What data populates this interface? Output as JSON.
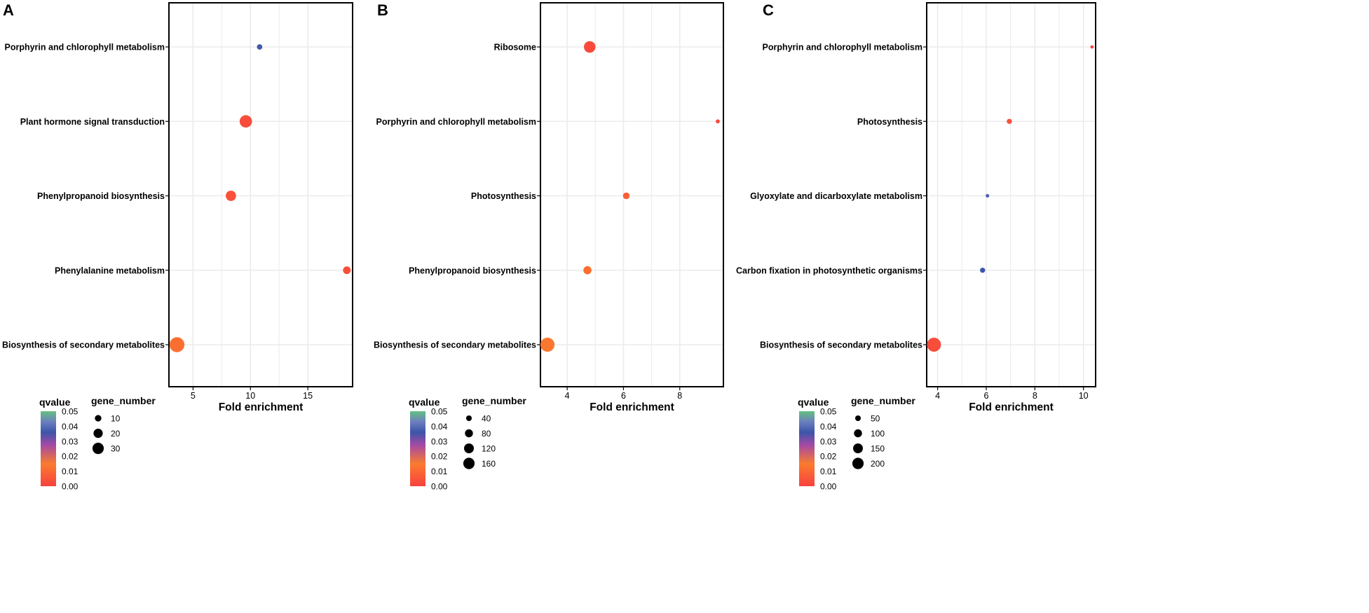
{
  "colors": {
    "grid": "#ebebeb",
    "axis": "#000000",
    "point_fill_scale": [
      "#f8413e",
      "#fa7b2e",
      "#a44aa5",
      "#3b55a8",
      "#6c7fbf",
      "#63c07f"
    ]
  },
  "chart_data": [
    {
      "type": "scatter",
      "panel_label": "A",
      "xlabel": "Fold enrichment",
      "ylabel": "",
      "xlim": [
        2.9,
        18.9
      ],
      "xticks": [
        "5",
        "10",
        "15"
      ],
      "xtick_values": [
        5,
        10,
        15
      ],
      "categories": [
        "Porphyrin and chlorophyll metabolism",
        "Plant hormone signal transduction",
        "Phenylpropanoid biosynthesis",
        "Phenylalanine metabolism",
        "Biosynthesis of secondary metabolites"
      ],
      "points": [
        {
          "pathway": "Porphyrin and chlorophyll metabolism",
          "fold_enrichment": 10.8,
          "qvalue": 0.037,
          "gene_number": 5
        },
        {
          "pathway": "Plant hormone signal transduction",
          "fold_enrichment": 9.6,
          "qvalue": 0.003,
          "gene_number": 26
        },
        {
          "pathway": "Phenylpropanoid biosynthesis",
          "fold_enrichment": 8.3,
          "qvalue": 0.004,
          "gene_number": 18
        },
        {
          "pathway": "Phenylalanine metabolism",
          "fold_enrichment": 18.4,
          "qvalue": 0.004,
          "gene_number": 10
        },
        {
          "pathway": "Biosynthesis of secondary metabolites",
          "fold_enrichment": 3.6,
          "qvalue": 0.012,
          "gene_number": 38
        }
      ],
      "color_legend": {
        "title": "qvalue",
        "min": 0.0,
        "max": 0.05,
        "labels": [
          "0.05",
          "0.04",
          "0.03",
          "0.02",
          "0.01",
          "0.00"
        ]
      },
      "size_legend": {
        "title": "gene_number",
        "labels": [
          "10",
          "20",
          "30"
        ],
        "values": [
          10,
          20,
          30
        ]
      }
    },
    {
      "type": "scatter",
      "panel_label": "B",
      "xlabel": "Fold enrichment",
      "ylabel": "",
      "xlim": [
        3.05,
        9.55
      ],
      "xticks": [
        "4",
        "6",
        "8"
      ],
      "xtick_values": [
        4,
        6,
        8
      ],
      "categories": [
        "Ribosome",
        "Porphyrin and chlorophyll metabolism",
        "Photosynthesis",
        "Phenylpropanoid biosynthesis",
        "Biosynthesis of secondary metabolites"
      ],
      "points": [
        {
          "pathway": "Ribosome",
          "fold_enrichment": 4.8,
          "qvalue": 0.002,
          "gene_number": 120
        },
        {
          "pathway": "Porphyrin and chlorophyll metabolism",
          "fold_enrichment": 9.35,
          "qvalue": 0.002,
          "gene_number": 15
        },
        {
          "pathway": "Photosynthesis",
          "fold_enrichment": 6.1,
          "qvalue": 0.008,
          "gene_number": 40
        },
        {
          "pathway": "Phenylpropanoid biosynthesis",
          "fold_enrichment": 4.72,
          "qvalue": 0.012,
          "gene_number": 60
        },
        {
          "pathway": "Biosynthesis of secondary metabolites",
          "fold_enrichment": 3.3,
          "qvalue": 0.014,
          "gene_number": 180
        }
      ],
      "color_legend": {
        "title": "qvalue",
        "min": 0.0,
        "max": 0.05,
        "labels": [
          "0.05",
          "0.04",
          "0.03",
          "0.02",
          "0.01",
          "0.00"
        ]
      },
      "size_legend": {
        "title": "gene_number",
        "labels": [
          "40",
          "80",
          "120",
          "160"
        ],
        "values": [
          40,
          80,
          120,
          160
        ]
      }
    },
    {
      "type": "scatter",
      "panel_label": "C",
      "xlabel": "Fold enrichment",
      "ylabel": "",
      "xlim": [
        3.55,
        10.5
      ],
      "xticks": [
        "4",
        "6",
        "8",
        "10"
      ],
      "xtick_values": [
        4,
        6,
        8,
        10
      ],
      "categories": [
        "Porphyrin and chlorophyll metabolism",
        "Photosynthesis",
        "Glyoxylate and dicarboxylate metabolism",
        "Carbon fixation in photosynthetic organisms",
        "Biosynthesis of secondary metabolites"
      ],
      "points": [
        {
          "pathway": "Porphyrin and chlorophyll metabolism",
          "fold_enrichment": 10.35,
          "qvalue": 0.001,
          "gene_number": 12
        },
        {
          "pathway": "Photosynthesis",
          "fold_enrichment": 6.95,
          "qvalue": 0.004,
          "gene_number": 30
        },
        {
          "pathway": "Glyoxylate and dicarboxylate metabolism",
          "fold_enrichment": 6.05,
          "qvalue": 0.038,
          "gene_number": 14
        },
        {
          "pathway": "Carbon fixation in photosynthetic organisms",
          "fold_enrichment": 5.85,
          "qvalue": 0.036,
          "gene_number": 30
        },
        {
          "pathway": "Biosynthesis of secondary metabolites",
          "fold_enrichment": 3.85,
          "qvalue": 0.003,
          "gene_number": 220
        }
      ],
      "color_legend": {
        "title": "qvalue",
        "min": 0.0,
        "max": 0.05,
        "labels": [
          "0.05",
          "0.04",
          "0.03",
          "0.02",
          "0.01",
          "0.00"
        ]
      },
      "size_legend": {
        "title": "gene_number",
        "labels": [
          "50",
          "100",
          "150",
          "200"
        ],
        "values": [
          50,
          100,
          150,
          200
        ]
      }
    }
  ]
}
